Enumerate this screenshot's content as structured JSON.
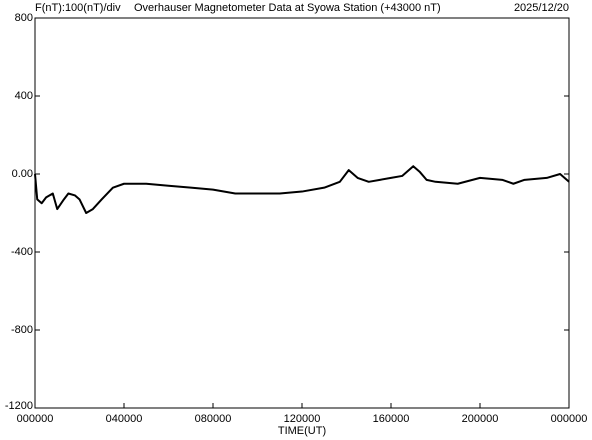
{
  "chart_data": {
    "type": "line",
    "title": "Overhauser Magnetometer Data at Syowa Station (+43000 nT)",
    "subtitle": "F(nT):100(nT)/div",
    "date": "2025/12/20",
    "x_label": "TIME(UT)",
    "xlim": [
      0,
      24
    ],
    "xticks": [
      {
        "value": 0,
        "label": "000000"
      },
      {
        "value": 4,
        "label": "040000"
      },
      {
        "value": 8,
        "label": "080000"
      },
      {
        "value": 12,
        "label": "120000"
      },
      {
        "value": 16,
        "label": "160000"
      },
      {
        "value": 20,
        "label": "200000"
      },
      {
        "value": 24,
        "label": "000000"
      }
    ],
    "ylim": [
      -1200,
      800
    ],
    "yticks": [
      {
        "value": -1200,
        "label": "-1200"
      },
      -800,
      -400,
      {
        "value": 0,
        "label": "0.00"
      },
      400,
      800
    ],
    "color": "#000000",
    "series": [
      {
        "name": "F",
        "x": [
          0,
          0.1,
          0.3,
          0.5,
          0.8,
          1.0,
          1.3,
          1.5,
          1.8,
          2.0,
          2.3,
          2.6,
          3.0,
          3.5,
          4,
          5,
          6,
          7,
          8,
          9,
          10,
          11,
          12,
          13,
          13.7,
          14.1,
          14.5,
          15,
          15.5,
          16,
          16.5,
          17,
          17.3,
          17.6,
          18,
          19,
          20,
          21,
          21.5,
          22,
          23,
          23.6,
          24
        ],
        "values": [
          0,
          -130,
          -150,
          -120,
          -100,
          -180,
          -130,
          -100,
          -110,
          -130,
          -200,
          -180,
          -130,
          -70,
          -50,
          -50,
          -60,
          -70,
          -80,
          -100,
          -100,
          -100,
          -90,
          -70,
          -40,
          20,
          -20,
          -40,
          -30,
          -20,
          -10,
          40,
          10,
          -30,
          -40,
          -50,
          -20,
          -30,
          -50,
          -30,
          -20,
          0,
          -40
        ]
      }
    ]
  }
}
